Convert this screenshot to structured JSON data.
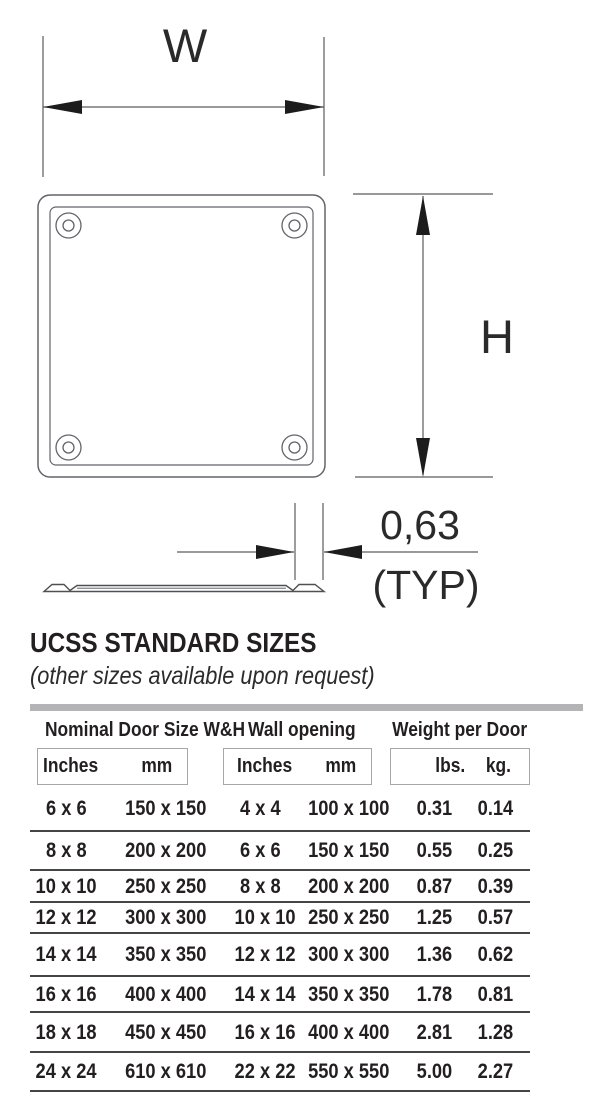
{
  "diagram": {
    "width_label": "W",
    "height_label": "H",
    "thickness_value": "0,63",
    "thickness_note": "(TYP)"
  },
  "section": {
    "title": "UCSS STANDARD SIZES",
    "subtitle": "(other sizes available upon request)"
  },
  "table": {
    "groups": [
      "Nominal Door Size W&H",
      "Wall opening",
      "Weight per Door"
    ],
    "subheaders": [
      "Inches",
      "mm",
      "Inches",
      "mm",
      "lbs.",
      "kg."
    ],
    "rows": [
      [
        "6 x 6",
        "150 x 150",
        "4 x 4",
        "100 x 100",
        "0.31",
        "0.14"
      ],
      [
        "8 x 8",
        "200 x 200",
        "6 x 6",
        "150 x 150",
        "0.55",
        "0.25"
      ],
      [
        "10 x 10",
        "250 x 250",
        "8 x 8",
        "200 x 200",
        "0.87",
        "0.39"
      ],
      [
        "12 x 12",
        "300 x 300",
        "10 x 10",
        "250 x 250",
        "1.25",
        "0.57"
      ],
      [
        "14 x 14",
        "350 x 350",
        "12 x 12",
        "300 x 300",
        "1.36",
        "0.62"
      ],
      [
        "16 x 16",
        "400 x 400",
        "14 x 14",
        "350 x 350",
        "1.78",
        "0.81"
      ],
      [
        "18 x 18",
        "450 x 450",
        "16 x 16",
        "400 x 400",
        "2.81",
        "1.28"
      ],
      [
        "24 x 24",
        "610 x 610",
        "22 x 22",
        "550 x 550",
        "5.00",
        "2.27"
      ]
    ]
  },
  "colors": {
    "line": "#5b5c5e",
    "arrow": "#1c1c1c",
    "text": "#231f20",
    "divider_gray": "#b4b4b6",
    "row_separator": "#454545"
  }
}
